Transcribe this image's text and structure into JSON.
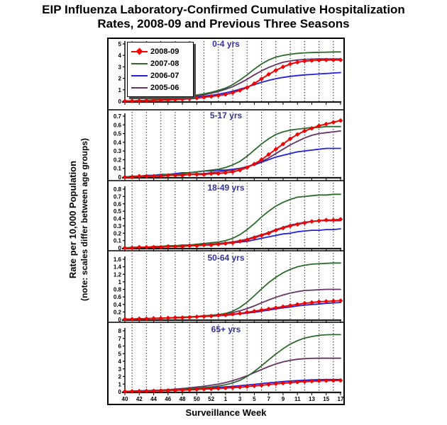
{
  "title": {
    "line1": "EIP Influenza Laboratory-Confirmed Cumulative Hospitalization",
    "line2": "Rates, 2008-09 and Previous Three Seasons"
  },
  "y_axis": {
    "title": "Rate per 10,000 Population",
    "note": "(note: scales differ between age groups)"
  },
  "x_axis": {
    "title": "Surveillance Week",
    "tick_labels": [
      "40",
      "42",
      "44",
      "46",
      "48",
      "50",
      "52",
      "1",
      "3",
      "5",
      "7",
      "9",
      "11",
      "13",
      "15",
      "17"
    ]
  },
  "colors": {
    "panel_title": "#333399",
    "axis": "#000000",
    "gridline": "#2a2a2a",
    "background": "#ffffff"
  },
  "chart_data": {
    "type": "line",
    "title": "EIP Influenza Laboratory-Confirmed Cumulative Hospitalization Rates, 2008-09 and Previous Three Seasons",
    "xlabel": "Surveillance Week",
    "ylabel": "Rate per 10,000 Population (note: scales differ between age groups)",
    "x_tick_labels": [
      "40",
      "42",
      "44",
      "46",
      "48",
      "50",
      "52",
      "1",
      "3",
      "5",
      "7",
      "9",
      "11",
      "13",
      "15",
      "17"
    ],
    "x_point_count": 31,
    "grid": "vertical dotted lines between labeled weeks",
    "legend_position": "top-left of first panel",
    "series_meta": [
      {
        "label": "2008-09",
        "color": "#ff0000",
        "marker": "diamond"
      },
      {
        "label": "2007-08",
        "color": "#2d6a2d",
        "marker": "none"
      },
      {
        "label": "2006-07",
        "color": "#2020dd",
        "marker": "none"
      },
      {
        "label": "2005-06",
        "color": "#663366",
        "marker": "none"
      }
    ],
    "panels": [
      {
        "title": "0-4 yrs",
        "ylim": [
          0,
          5
        ],
        "yticks": [
          0,
          1,
          2,
          3,
          4,
          5
        ],
        "values": {
          "2008-09": [
            0.02,
            0.03,
            0.04,
            0.06,
            0.08,
            0.1,
            0.12,
            0.15,
            0.18,
            0.22,
            0.28,
            0.35,
            0.42,
            0.5,
            0.6,
            0.75,
            0.95,
            1.2,
            1.55,
            1.95,
            2.35,
            2.7,
            3.0,
            3.25,
            3.4,
            3.5,
            3.55,
            3.58,
            3.6,
            3.6,
            3.6
          ],
          "2007-08": [
            0.02,
            0.04,
            0.06,
            0.08,
            0.12,
            0.16,
            0.2,
            0.28,
            0.36,
            0.45,
            0.55,
            0.65,
            0.78,
            0.95,
            1.15,
            1.45,
            1.85,
            2.3,
            2.8,
            3.25,
            3.6,
            3.85,
            4.0,
            4.1,
            4.18,
            4.22,
            4.25,
            4.27,
            4.28,
            4.3,
            4.3
          ],
          "2006-07": [
            0.02,
            0.03,
            0.05,
            0.07,
            0.09,
            0.12,
            0.15,
            0.19,
            0.24,
            0.3,
            0.37,
            0.44,
            0.52,
            0.62,
            0.74,
            0.88,
            1.05,
            1.25,
            1.45,
            1.65,
            1.82,
            1.97,
            2.08,
            2.17,
            2.24,
            2.3,
            2.34,
            2.38,
            2.42,
            2.46,
            2.5
          ],
          "2005-06": [
            0.02,
            0.03,
            0.05,
            0.08,
            0.11,
            0.15,
            0.19,
            0.24,
            0.3,
            0.38,
            0.47,
            0.57,
            0.7,
            0.85,
            1.05,
            1.28,
            1.58,
            1.92,
            2.3,
            2.65,
            2.95,
            3.2,
            3.4,
            3.52,
            3.6,
            3.65,
            3.68,
            3.7,
            3.7,
            3.7,
            3.7
          ]
        }
      },
      {
        "title": "5-17 yrs",
        "ylim": [
          0,
          0.7
        ],
        "yticks": [
          0,
          0.1,
          0.2,
          0.3,
          0.4,
          0.5,
          0.6,
          0.7
        ],
        "values": {
          "2008-09": [
            0.0,
            0.0,
            0.01,
            0.01,
            0.01,
            0.01,
            0.02,
            0.02,
            0.02,
            0.03,
            0.03,
            0.03,
            0.04,
            0.04,
            0.05,
            0.06,
            0.08,
            0.11,
            0.15,
            0.2,
            0.26,
            0.32,
            0.38,
            0.44,
            0.49,
            0.53,
            0.56,
            0.59,
            0.61,
            0.63,
            0.65
          ],
          "2007-08": [
            0.0,
            0.01,
            0.01,
            0.01,
            0.02,
            0.02,
            0.03,
            0.03,
            0.04,
            0.05,
            0.06,
            0.07,
            0.08,
            0.09,
            0.11,
            0.14,
            0.18,
            0.24,
            0.31,
            0.38,
            0.44,
            0.49,
            0.52,
            0.54,
            0.55,
            0.56,
            0.57,
            0.57,
            0.58,
            0.58,
            0.58
          ],
          "2006-07": [
            0.0,
            0.01,
            0.01,
            0.02,
            0.02,
            0.03,
            0.03,
            0.04,
            0.05,
            0.05,
            0.06,
            0.07,
            0.07,
            0.08,
            0.08,
            0.09,
            0.1,
            0.12,
            0.14,
            0.17,
            0.2,
            0.23,
            0.25,
            0.27,
            0.29,
            0.3,
            0.31,
            0.32,
            0.33,
            0.33,
            0.33
          ],
          "2005-06": [
            0.0,
            0.0,
            0.01,
            0.01,
            0.01,
            0.02,
            0.02,
            0.02,
            0.03,
            0.03,
            0.04,
            0.04,
            0.05,
            0.06,
            0.07,
            0.08,
            0.1,
            0.12,
            0.15,
            0.18,
            0.22,
            0.27,
            0.32,
            0.37,
            0.41,
            0.45,
            0.48,
            0.5,
            0.51,
            0.52,
            0.53
          ]
        }
      },
      {
        "title": "18-49 yrs",
        "ylim": [
          0,
          0.8
        ],
        "yticks": [
          0,
          0.1,
          0.2,
          0.3,
          0.4,
          0.5,
          0.6,
          0.7,
          0.8
        ],
        "values": {
          "2008-09": [
            0.0,
            0.0,
            0.01,
            0.01,
            0.01,
            0.01,
            0.02,
            0.02,
            0.02,
            0.03,
            0.03,
            0.04,
            0.04,
            0.05,
            0.06,
            0.07,
            0.09,
            0.11,
            0.14,
            0.17,
            0.2,
            0.24,
            0.27,
            0.3,
            0.32,
            0.34,
            0.36,
            0.37,
            0.38,
            0.38,
            0.39
          ],
          "2007-08": [
            0.0,
            0.01,
            0.01,
            0.01,
            0.02,
            0.02,
            0.03,
            0.03,
            0.04,
            0.04,
            0.05,
            0.06,
            0.07,
            0.08,
            0.1,
            0.13,
            0.18,
            0.25,
            0.33,
            0.42,
            0.5,
            0.57,
            0.62,
            0.66,
            0.69,
            0.7,
            0.71,
            0.72,
            0.72,
            0.73,
            0.73
          ],
          "2006-07": [
            0.0,
            0.0,
            0.01,
            0.01,
            0.01,
            0.02,
            0.02,
            0.02,
            0.03,
            0.03,
            0.04,
            0.04,
            0.05,
            0.05,
            0.06,
            0.07,
            0.08,
            0.09,
            0.11,
            0.13,
            0.15,
            0.17,
            0.19,
            0.2,
            0.22,
            0.23,
            0.24,
            0.24,
            0.25,
            0.25,
            0.26
          ],
          "2005-06": [
            0.0,
            0.0,
            0.01,
            0.01,
            0.01,
            0.02,
            0.02,
            0.02,
            0.03,
            0.03,
            0.04,
            0.04,
            0.05,
            0.06,
            0.07,
            0.08,
            0.1,
            0.12,
            0.15,
            0.18,
            0.21,
            0.25,
            0.28,
            0.31,
            0.33,
            0.35,
            0.36,
            0.37,
            0.37,
            0.37,
            0.37
          ]
        }
      },
      {
        "title": "50-64 yrs",
        "ylim": [
          0,
          1.6
        ],
        "yticks": [
          0,
          0.2,
          0.4,
          0.6,
          0.8,
          1,
          1.2,
          1.4,
          1.6
        ],
        "values": {
          "2008-09": [
            0.01,
            0.01,
            0.02,
            0.02,
            0.03,
            0.03,
            0.04,
            0.05,
            0.05,
            0.06,
            0.07,
            0.08,
            0.09,
            0.11,
            0.12,
            0.14,
            0.16,
            0.19,
            0.22,
            0.25,
            0.28,
            0.31,
            0.34,
            0.37,
            0.4,
            0.43,
            0.45,
            0.47,
            0.48,
            0.49,
            0.5
          ],
          "2007-08": [
            0.01,
            0.01,
            0.02,
            0.02,
            0.03,
            0.04,
            0.04,
            0.05,
            0.06,
            0.07,
            0.08,
            0.1,
            0.11,
            0.13,
            0.16,
            0.22,
            0.32,
            0.46,
            0.63,
            0.81,
            0.98,
            1.12,
            1.24,
            1.33,
            1.4,
            1.44,
            1.47,
            1.48,
            1.49,
            1.5,
            1.5
          ],
          "2006-07": [
            0.01,
            0.01,
            0.02,
            0.02,
            0.03,
            0.03,
            0.04,
            0.04,
            0.05,
            0.06,
            0.07,
            0.08,
            0.09,
            0.1,
            0.11,
            0.13,
            0.15,
            0.17,
            0.19,
            0.22,
            0.25,
            0.28,
            0.31,
            0.33,
            0.36,
            0.38,
            0.4,
            0.41,
            0.43,
            0.44,
            0.45
          ],
          "2005-06": [
            0.01,
            0.01,
            0.02,
            0.02,
            0.03,
            0.03,
            0.04,
            0.05,
            0.06,
            0.07,
            0.08,
            0.09,
            0.11,
            0.13,
            0.15,
            0.18,
            0.23,
            0.29,
            0.36,
            0.44,
            0.52,
            0.59,
            0.65,
            0.7,
            0.74,
            0.77,
            0.78,
            0.79,
            0.8,
            0.8,
            0.8
          ]
        }
      },
      {
        "title": "65+ yrs",
        "ylim": [
          0,
          8
        ],
        "yticks": [
          0,
          1,
          2,
          3,
          4,
          5,
          6,
          7,
          8
        ],
        "values": {
          "2008-09": [
            0.03,
            0.05,
            0.07,
            0.09,
            0.11,
            0.13,
            0.16,
            0.19,
            0.22,
            0.26,
            0.3,
            0.34,
            0.38,
            0.43,
            0.48,
            0.54,
            0.6,
            0.68,
            0.76,
            0.85,
            0.94,
            1.03,
            1.12,
            1.2,
            1.27,
            1.33,
            1.38,
            1.42,
            1.45,
            1.47,
            1.48
          ],
          "2007-08": [
            0.03,
            0.05,
            0.08,
            0.11,
            0.14,
            0.18,
            0.22,
            0.27,
            0.32,
            0.38,
            0.45,
            0.53,
            0.62,
            0.75,
            0.92,
            1.15,
            1.5,
            2.0,
            2.65,
            3.4,
            4.2,
            4.95,
            5.65,
            6.25,
            6.7,
            7.05,
            7.25,
            7.4,
            7.48,
            7.5,
            7.5
          ],
          "2006-07": [
            0.05,
            0.08,
            0.11,
            0.14,
            0.17,
            0.2,
            0.24,
            0.28,
            0.32,
            0.37,
            0.42,
            0.47,
            0.52,
            0.58,
            0.64,
            0.71,
            0.79,
            0.88,
            0.97,
            1.07,
            1.16,
            1.25,
            1.33,
            1.4,
            1.46,
            1.51,
            1.55,
            1.58,
            1.6,
            1.6,
            1.6
          ],
          "2005-06": [
            0.03,
            0.05,
            0.08,
            0.12,
            0.16,
            0.21,
            0.27,
            0.34,
            0.42,
            0.51,
            0.61,
            0.72,
            0.85,
            1.0,
            1.2,
            1.45,
            1.75,
            2.1,
            2.5,
            2.9,
            3.3,
            3.65,
            3.92,
            4.12,
            4.26,
            4.34,
            4.38,
            4.4,
            4.4,
            4.4,
            4.4
          ]
        }
      }
    ]
  }
}
